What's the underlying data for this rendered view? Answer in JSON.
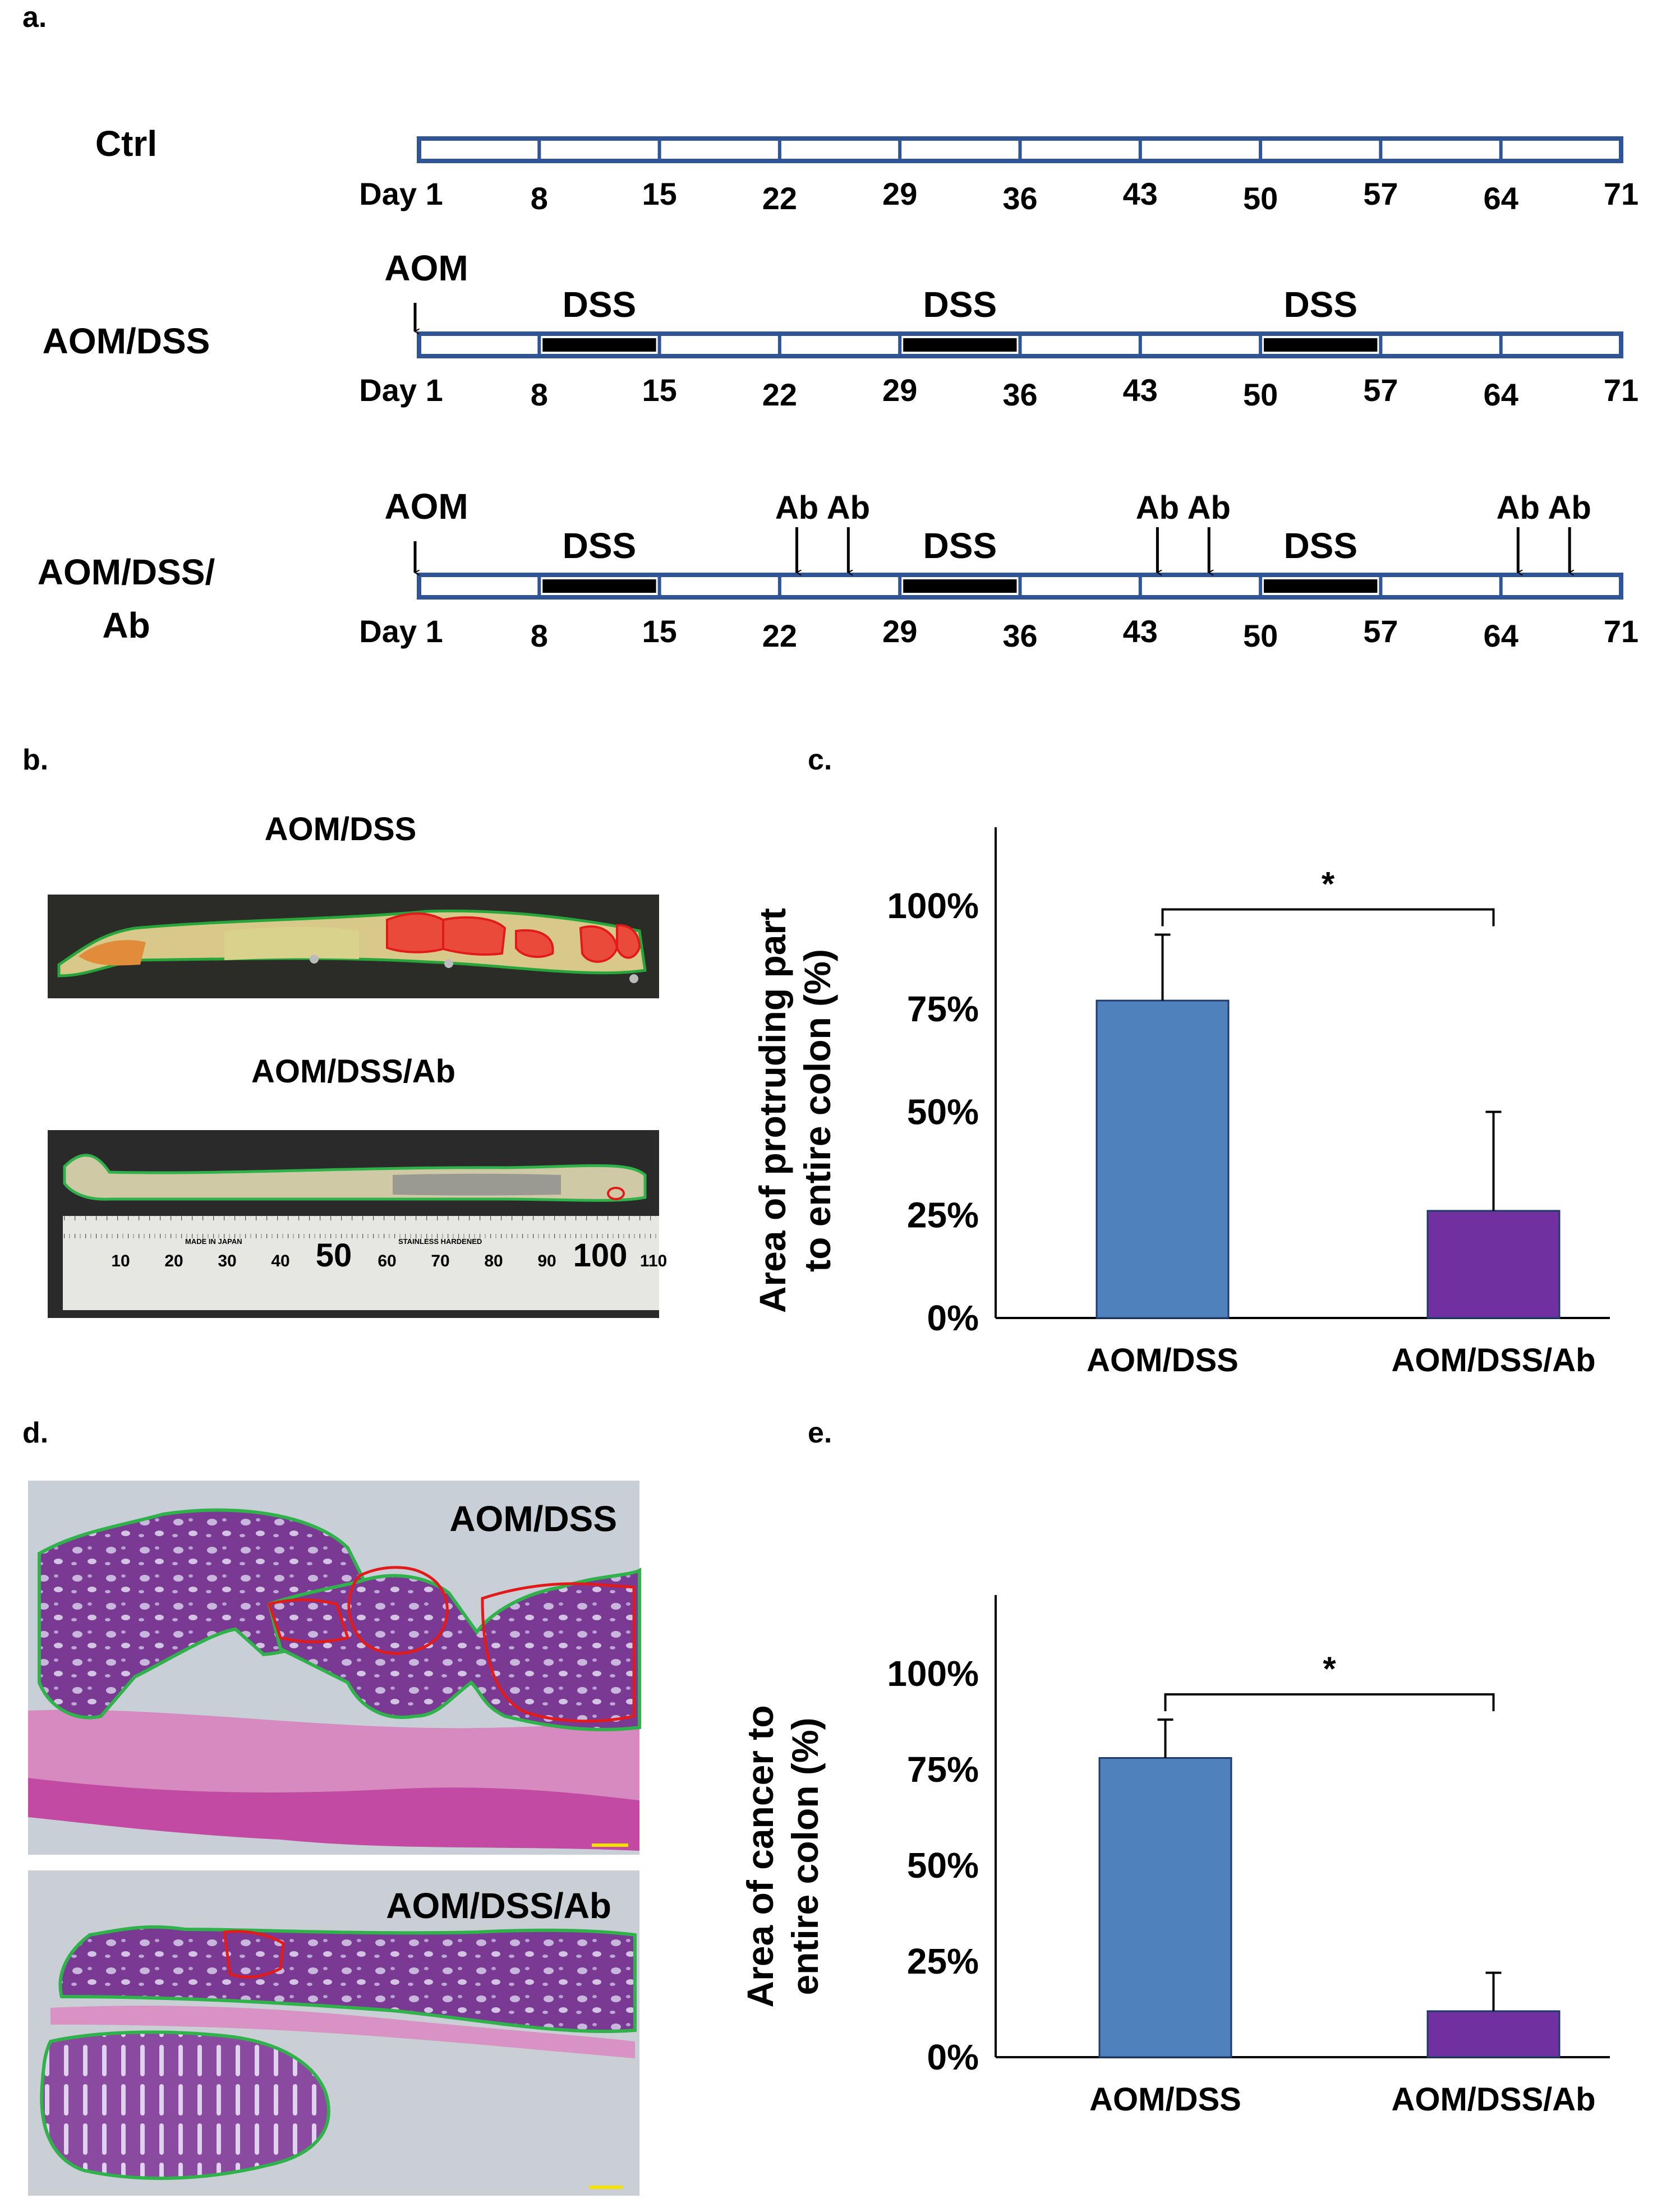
{
  "panels": {
    "a": {
      "label": "a.",
      "rows": [
        {
          "name": "Ctrl",
          "days": [
            "Day 1",
            "8",
            "15",
            "22",
            "29",
            "36",
            "43",
            "50",
            "57",
            "64",
            "71"
          ],
          "aom_label": "",
          "dss_label": "",
          "dss_segments": [],
          "ab_label": "",
          "ab_days": []
        },
        {
          "name": "AOM/DSS",
          "days": [
            "Day 1",
            "8",
            "15",
            "22",
            "29",
            "36",
            "43",
            "50",
            "57",
            "64",
            "71"
          ],
          "aom_label": "AOM",
          "dss_label": "DSS",
          "dss_segments": [
            [
              8,
              15
            ],
            [
              29,
              36
            ],
            [
              50,
              57
            ]
          ],
          "ab_label": "",
          "ab_days": []
        },
        {
          "name": "AOM/DSS/\nAb",
          "name_lines": [
            "AOM/DSS/",
            "Ab"
          ],
          "days": [
            "Day 1",
            "8",
            "15",
            "22",
            "29",
            "36",
            "43",
            "50",
            "57",
            "64",
            "71"
          ],
          "aom_label": "AOM",
          "dss_label": "DSS",
          "dss_segments": [
            [
              8,
              15
            ],
            [
              29,
              36
            ],
            [
              50,
              57
            ]
          ],
          "ab_label": "Ab",
          "ab_days": [
            23,
            26,
            44,
            47,
            65,
            68
          ]
        }
      ]
    },
    "b": {
      "label": "b.",
      "photo_titles": [
        "AOM/DSS",
        "AOM/DSS/Ab"
      ],
      "ruler_numbers": [
        "10",
        "20",
        "30",
        "40",
        "50",
        "60",
        "70",
        "80",
        "90",
        "100",
        "110"
      ],
      "ruler_small_text": [
        "MADE IN JAPAN",
        "STAINLESS HARDENED"
      ]
    },
    "c": {
      "label": "c.",
      "significance": "*",
      "chart_data": {
        "type": "bar",
        "categories": [
          "AOM/DSS",
          "AOM/DSS/Ab"
        ],
        "values": [
          77,
          26
        ],
        "errors": [
          16,
          24
        ],
        "colors": [
          "#4F81BD",
          "#7030A0"
        ],
        "ylabel_lines": [
          "Area of protruding part",
          "to entire colon (%)"
        ],
        "ylim": [
          0,
          100
        ],
        "yticks": [
          0,
          25,
          50,
          75,
          100
        ],
        "ytick_labels": [
          "0%",
          "25%",
          "50%",
          "75%",
          "100%"
        ],
        "grid": false
      }
    },
    "d": {
      "label": "d.",
      "photo_titles": [
        "AOM/DSS",
        "AOM/DSS/Ab"
      ]
    },
    "e": {
      "label": "e.",
      "significance": "*",
      "chart_data": {
        "type": "bar",
        "categories": [
          "AOM/DSS",
          "AOM/DSS/Ab"
        ],
        "values": [
          78,
          12
        ],
        "errors": [
          10,
          10
        ],
        "colors": [
          "#4F81BD",
          "#7030A0"
        ],
        "ylabel_lines": [
          "Area of cancer to",
          "entire colon (%)"
        ],
        "ylim": [
          0,
          100
        ],
        "yticks": [
          0,
          25,
          50,
          75,
          100
        ],
        "ytick_labels": [
          "0%",
          "25%",
          "50%",
          "75%",
          "100%"
        ],
        "grid": false
      }
    }
  }
}
